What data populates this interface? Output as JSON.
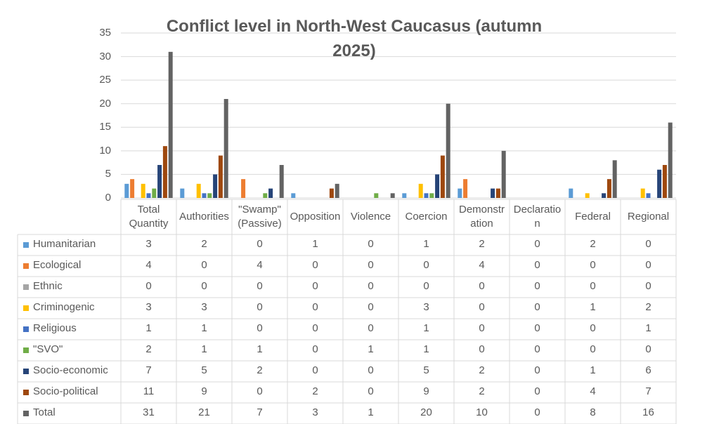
{
  "chart_data": {
    "type": "bar",
    "title": "Conflict level in North-West Caucasus (autumn 2025)",
    "categories": [
      "Total Quantity",
      "Authorities",
      "\"Swamp\" (Passive)",
      "Opposition",
      "Violence",
      "Coercion",
      "Demonstration",
      "Declaration",
      "Federal",
      "Regional"
    ],
    "series": [
      {
        "name": "Humanitarian",
        "color": "#5b9bd5",
        "values": [
          3,
          2,
          0,
          1,
          0,
          1,
          2,
          0,
          2,
          0
        ]
      },
      {
        "name": "Ecological",
        "color": "#ed7d31",
        "values": [
          4,
          0,
          4,
          0,
          0,
          0,
          4,
          0,
          0,
          0
        ]
      },
      {
        "name": "Ethnic",
        "color": "#a5a5a5",
        "values": [
          0,
          0,
          0,
          0,
          0,
          0,
          0,
          0,
          0,
          0
        ]
      },
      {
        "name": "Criminogenic",
        "color": "#ffc000",
        "values": [
          3,
          3,
          0,
          0,
          0,
          3,
          0,
          0,
          1,
          2
        ]
      },
      {
        "name": "Religious",
        "color": "#4472c4",
        "values": [
          1,
          1,
          0,
          0,
          0,
          1,
          0,
          0,
          0,
          1
        ]
      },
      {
        "name": "\"SVO\"",
        "color": "#70ad47",
        "values": [
          2,
          1,
          1,
          0,
          1,
          1,
          0,
          0,
          0,
          0
        ]
      },
      {
        "name": "Socio-economic",
        "color": "#264478",
        "values": [
          7,
          5,
          2,
          0,
          0,
          5,
          2,
          0,
          1,
          6
        ]
      },
      {
        "name": "Socio-political",
        "color": "#9e480e",
        "values": [
          11,
          9,
          0,
          2,
          0,
          9,
          2,
          0,
          4,
          7
        ]
      },
      {
        "name": "Total",
        "color": "#636363",
        "values": [
          31,
          21,
          7,
          3,
          1,
          20,
          10,
          0,
          8,
          16
        ]
      }
    ],
    "ylim": [
      0,
      35
    ],
    "yticks": [
      0,
      5,
      10,
      15,
      20,
      25,
      30,
      35
    ],
    "grid": true
  }
}
